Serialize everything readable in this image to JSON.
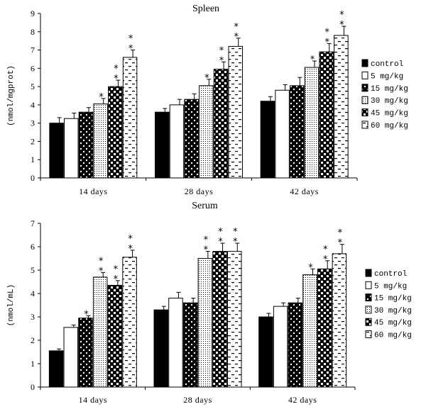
{
  "chart_data": [
    {
      "type": "bar",
      "title": "Spleen",
      "ylabel": "(nmol/mgprot)",
      "ylim": [
        0,
        9
      ],
      "yticks": [
        "0",
        "1",
        "2",
        "3",
        "4",
        "5",
        "6",
        "7",
        "8",
        "9"
      ],
      "categories": [
        "14 days",
        "28 days",
        "42 days"
      ],
      "legend_position": "right",
      "series": [
        {
          "name": "control",
          "pattern": "solid",
          "values": [
            3.0,
            3.6,
            4.2
          ],
          "errors": [
            0.3,
            0.2,
            0.25
          ],
          "stars": [
            0,
            0,
            0
          ]
        },
        {
          "name": "5 mg/kg",
          "pattern": "white",
          "values": [
            3.25,
            4.0,
            4.8
          ],
          "errors": [
            0.3,
            0.3,
            0.3
          ],
          "stars": [
            0,
            0,
            0
          ]
        },
        {
          "name": "15 mg/kg",
          "pattern": "dots-on-black",
          "values": [
            3.6,
            4.3,
            5.05
          ],
          "errors": [
            0.25,
            0.3,
            0.45
          ],
          "stars": [
            0,
            0,
            0
          ]
        },
        {
          "name": "30 mg/kg",
          "pattern": "fine-dots",
          "values": [
            4.05,
            5.05,
            6.05
          ],
          "errors": [
            0.3,
            0.35,
            0.35
          ],
          "stars": [
            1,
            1,
            1
          ]
        },
        {
          "name": "45 mg/kg",
          "pattern": "checker",
          "values": [
            5.0,
            5.95,
            6.9
          ],
          "errors": [
            0.35,
            0.4,
            0.45
          ],
          "stars": [
            2,
            2,
            2
          ]
        },
        {
          "name": "60 mg/kg",
          "pattern": "dashes",
          "values": [
            6.6,
            7.2,
            7.8
          ],
          "errors": [
            0.4,
            0.45,
            0.5
          ],
          "stars": [
            2,
            2,
            2
          ]
        }
      ]
    },
    {
      "type": "bar",
      "title": "Serum",
      "ylabel": "(nmol/mL)",
      "ylim": [
        0,
        7
      ],
      "yticks": [
        "0",
        "1",
        "2",
        "3",
        "4",
        "5",
        "6",
        "7"
      ],
      "categories": [
        "14 days",
        "28 days",
        "42 days"
      ],
      "legend_position": "right",
      "series": [
        {
          "name": "control",
          "pattern": "solid",
          "values": [
            1.55,
            3.3,
            3.0
          ],
          "errors": [
            0.08,
            0.15,
            0.15
          ],
          "stars": [
            0,
            0,
            0
          ]
        },
        {
          "name": "5 mg/kg",
          "pattern": "white",
          "values": [
            2.55,
            3.8,
            3.45
          ],
          "errors": [
            0.1,
            0.25,
            0.15
          ],
          "stars": [
            0,
            0,
            0
          ]
        },
        {
          "name": "15 mg/kg",
          "pattern": "dots-on-black",
          "values": [
            2.95,
            3.6,
            3.6
          ],
          "errors": [
            0.1,
            0.2,
            0.2
          ],
          "stars": [
            1,
            0,
            0
          ]
        },
        {
          "name": "30 mg/kg",
          "pattern": "fine-dots",
          "values": [
            4.7,
            5.5,
            4.8
          ],
          "errors": [
            0.2,
            0.3,
            0.25
          ],
          "stars": [
            2,
            2,
            1
          ]
        },
        {
          "name": "45 mg/kg",
          "pattern": "checker",
          "values": [
            4.35,
            5.8,
            5.05
          ],
          "errors": [
            0.2,
            0.35,
            0.35
          ],
          "stars": [
            2,
            2,
            2
          ]
        },
        {
          "name": "60 mg/kg",
          "pattern": "dashes",
          "values": [
            5.55,
            5.8,
            5.7
          ],
          "errors": [
            0.3,
            0.35,
            0.4
          ],
          "stars": [
            2,
            2,
            2
          ]
        }
      ]
    }
  ]
}
